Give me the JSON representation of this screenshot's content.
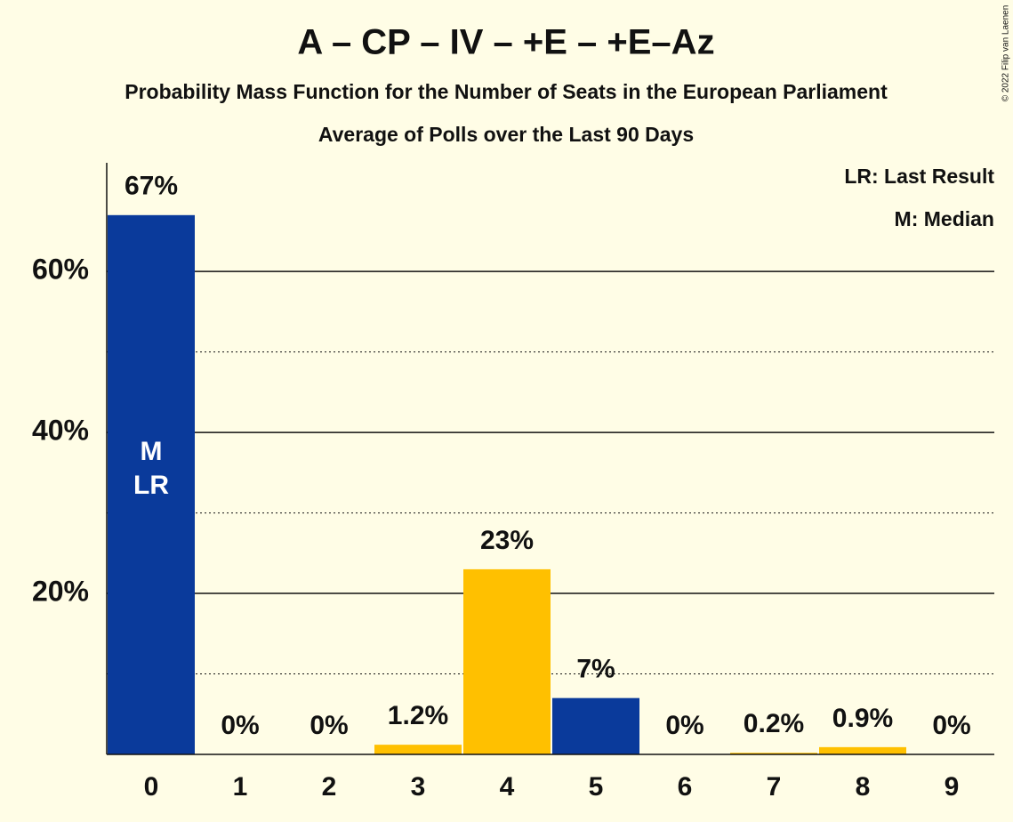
{
  "chart_data": {
    "type": "bar",
    "title": "A – CP – IV – +E – +E–Az",
    "subtitle": "Probability Mass Function for the Number of Seats in the European Parliament",
    "subtitle2": "Average of Polls over the Last 90 Days",
    "categories": [
      "0",
      "1",
      "2",
      "3",
      "4",
      "5",
      "6",
      "7",
      "8",
      "9"
    ],
    "values": [
      67,
      0,
      0,
      1.2,
      23,
      7,
      0,
      0.2,
      0.9,
      0
    ],
    "value_labels": [
      "67%",
      "0%",
      "0%",
      "1.2%",
      "23%",
      "7%",
      "0%",
      "0.2%",
      "0.9%",
      "0%"
    ],
    "colors": [
      "#0a3a9b",
      "#0a3a9b",
      "#0a3a9b",
      "#ffc000",
      "#ffc000",
      "#0a3a9b",
      "#0a3a9b",
      "#ffc000",
      "#ffc000",
      "#0a3a9b"
    ],
    "ylim": [
      0,
      73.5
    ],
    "yticks": [
      {
        "value": 20,
        "label": "20%"
      },
      {
        "value": 40,
        "label": "40%"
      },
      {
        "value": 60,
        "label": "60%"
      }
    ],
    "minor_grid": [
      10,
      30,
      50
    ],
    "grid": true,
    "bar_annotations": [
      {
        "text": "M",
        "category": 0
      },
      {
        "text": "LR",
        "category": 0
      }
    ],
    "legend_notes": [
      "LR: Last Result",
      "M: Median"
    ],
    "copyright": "© 2022 Filip van Laenen"
  }
}
